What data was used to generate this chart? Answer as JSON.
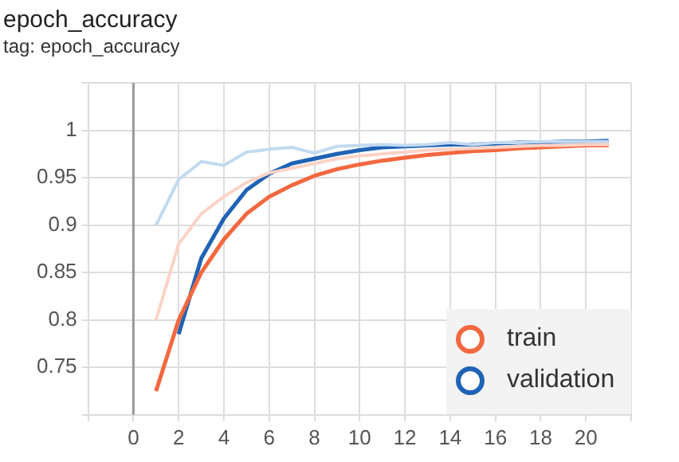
{
  "chart_data": {
    "type": "line",
    "title": "epoch_accuracy",
    "subtitle": "tag: epoch_accuracy",
    "xlim": [
      -2,
      22
    ],
    "xticks": [
      {
        "value": -2,
        "label": null
      },
      0,
      2,
      4,
      6,
      8,
      10,
      12,
      14,
      16,
      18,
      20,
      {
        "value": 22,
        "label": null
      }
    ],
    "ylim": [
      0.7,
      1.05
    ],
    "yticks": [
      {
        "value": 0.7,
        "label": null
      },
      0.75,
      0.8,
      0.85,
      0.9,
      0.95,
      1,
      {
        "value": 1.05,
        "label": null
      }
    ],
    "grid": true,
    "legend": "bottom right",
    "line_style": "solid",
    "ref_lines": [
      {
        "axis": "x",
        "value": 0,
        "color": "#999999"
      }
    ],
    "series": [
      {
        "color": "#fbd3c6",
        "x": [
          1,
          2,
          3,
          4,
          5,
          6,
          7,
          8,
          9,
          10,
          11,
          12,
          13,
          14,
          15,
          16,
          17,
          18,
          19,
          20,
          21
        ],
        "values": [
          0.8,
          0.88,
          0.912,
          0.93,
          0.945,
          0.955,
          0.96,
          0.965,
          0.97,
          0.973,
          0.975,
          0.977,
          0.979,
          0.98,
          0.981,
          0.982,
          0.983,
          0.984,
          0.984,
          0.985,
          0.985
        ]
      },
      {
        "color": "#c2daf1",
        "x": [
          1,
          2,
          3,
          4,
          5,
          6,
          7,
          8,
          9,
          10,
          11,
          12,
          13,
          14,
          15,
          16,
          17,
          18,
          19,
          20,
          21
        ],
        "values": [
          0.9,
          0.948,
          0.967,
          0.963,
          0.977,
          0.98,
          0.982,
          0.976,
          0.983,
          0.984,
          0.985,
          0.984,
          0.985,
          0.987,
          0.985,
          0.987,
          0.987,
          0.988,
          0.988,
          0.988,
          0.988
        ]
      },
      {
        "name": "train",
        "color": "#f4683f",
        "x": [
          1,
          2,
          3,
          4,
          5,
          6,
          7,
          8,
          9,
          10,
          11,
          12,
          13,
          14,
          15,
          16,
          17,
          18,
          19,
          20,
          21
        ],
        "values": [
          0.725,
          0.8,
          0.85,
          0.885,
          0.912,
          0.93,
          0.942,
          0.952,
          0.959,
          0.964,
          0.968,
          0.971,
          0.974,
          0.976,
          0.978,
          0.979,
          0.981,
          0.982,
          0.983,
          0.984,
          0.984
        ]
      },
      {
        "name": "validation",
        "color": "#1f63b5",
        "x": [
          2,
          3,
          4,
          5,
          6,
          7,
          8,
          9,
          10,
          11,
          12,
          13,
          14,
          15,
          16,
          17,
          18,
          19,
          20,
          21
        ],
        "values": [
          0.785,
          0.865,
          0.907,
          0.937,
          0.954,
          0.965,
          0.97,
          0.975,
          0.979,
          0.982,
          0.983,
          0.984,
          0.985,
          0.985,
          0.986,
          0.987,
          0.987,
          0.988,
          0.988,
          0.989
        ]
      }
    ]
  }
}
